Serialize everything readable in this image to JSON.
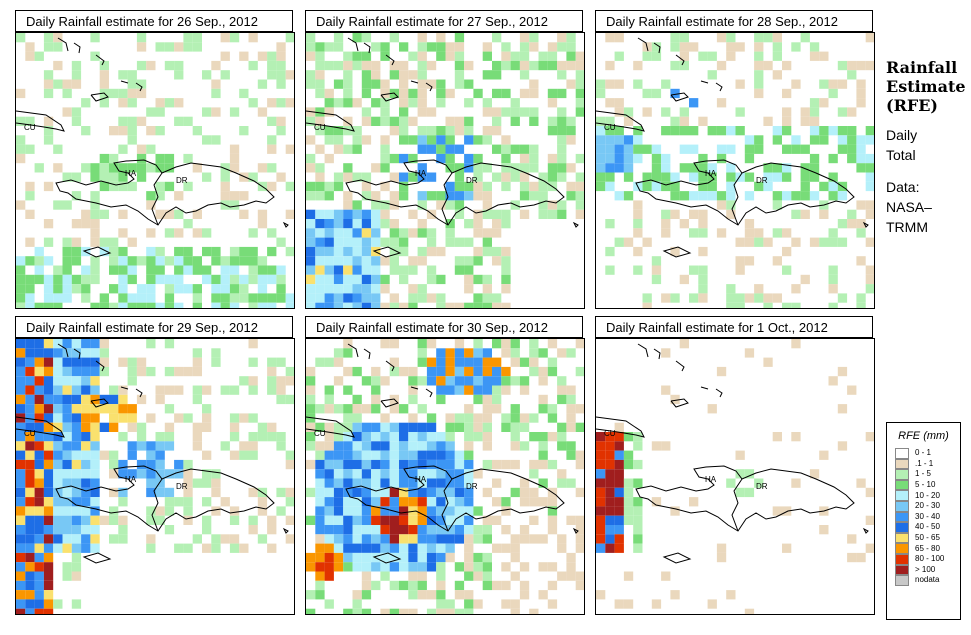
{
  "panels": [
    {
      "title": "Daily Rainfall estimate for  26 Sep., 2012",
      "pattern": "light"
    },
    {
      "title": "Daily Rainfall estimate for  27 Sep., 2012",
      "pattern": "medium"
    },
    {
      "title": "Daily Rainfall estimate for  28 Sep., 2012",
      "pattern": "light2"
    },
    {
      "title": "Daily Rainfall estimate for  29 Sep., 2012",
      "pattern": "heavy_west"
    },
    {
      "title": "Daily Rainfall estimate for  30 Sep., 2012",
      "pattern": "heavy_center"
    },
    {
      "title": "Daily Rainfall estimate for  1 Oct., 2012",
      "pattern": "dry"
    }
  ],
  "map_labels": {
    "cuba": "CU",
    "haiti": "HA",
    "dominican_republic": "DR"
  },
  "side": {
    "heading1": "Rainfall",
    "heading2": "Estimate",
    "heading3": "(RFE)",
    "line1": "Daily",
    "line2": "Total",
    "line3": "Data:",
    "line4": "NASA–",
    "line5": "TRMM"
  },
  "legend": {
    "title": "RFE (mm)",
    "items": [
      {
        "label": "0 - 1",
        "color": "#ffffff"
      },
      {
        "label": ".1 - 1",
        "color": "#ead8bd"
      },
      {
        "label": "1 - 5",
        "color": "#b4f0b4"
      },
      {
        "label": "5 - 10",
        "color": "#78dc78"
      },
      {
        "label": "10 - 20",
        "color": "#b4f0fa"
      },
      {
        "label": "20 - 30",
        "color": "#78c8f5"
      },
      {
        "label": "30 - 40",
        "color": "#3c96f5"
      },
      {
        "label": "40 - 50",
        "color": "#1e6ee6"
      },
      {
        "label": "50 - 65",
        "color": "#fae16e"
      },
      {
        "label": "65 - 80",
        "color": "#fa9600"
      },
      {
        "label": "80 - 100",
        "color": "#e13200"
      },
      {
        "label": "> 100",
        "color": "#a01e1e"
      },
      {
        "label": "nodata",
        "color": "#c8c8c8"
      }
    ]
  }
}
